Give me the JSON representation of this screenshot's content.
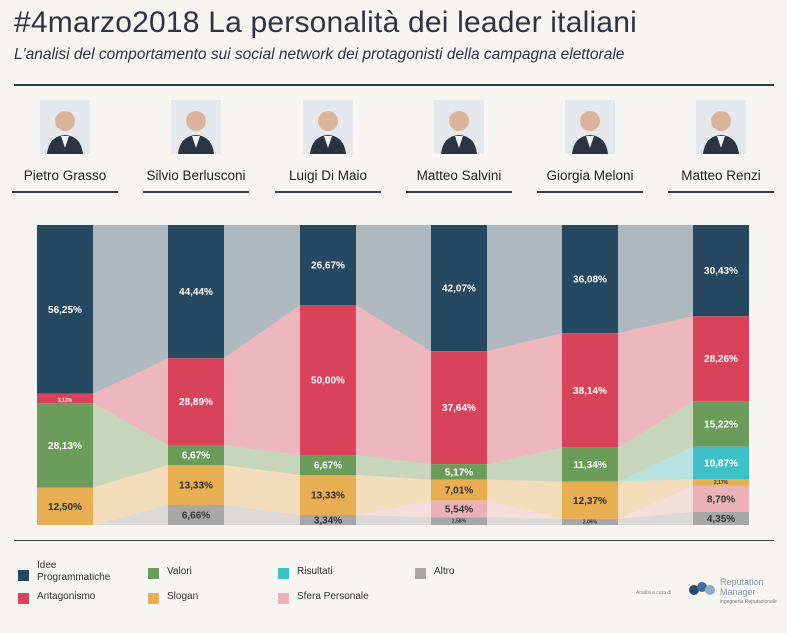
{
  "title": "#4marzo2018 La personalità dei leader italiani",
  "subtitle": "L'analisi del comportamento sui social network dei protagonisti della campagna elettorale",
  "colors": {
    "background": "#f7f5f1",
    "idee": "#264860",
    "antagonismo": "#d8435a",
    "valori": "#6c9c59",
    "slogan": "#e8ae52",
    "risultati": "#3fbfc6",
    "sfera": "#eab1b8",
    "altro": "#a7a7a7"
  },
  "leaders": [
    {
      "name": "Pietro Grasso",
      "icon": "portrait-grasso-icon"
    },
    {
      "name": "Silvio Berlusconi",
      "icon": "portrait-berlusconi-icon"
    },
    {
      "name": "Luigi Di Maio",
      "icon": "portrait-dimaio-icon"
    },
    {
      "name": "Matteo Salvini",
      "icon": "portrait-salvini-icon"
    },
    {
      "name": "Giorgia Meloni",
      "icon": "portrait-meloni-icon"
    },
    {
      "name": "Matteo Renzi",
      "icon": "portrait-renzi-icon"
    }
  ],
  "legend": [
    {
      "key": "idee",
      "label": "Idee Programmatiche"
    },
    {
      "key": "antagonismo",
      "label": "Antagonismo"
    },
    {
      "key": "valori",
      "label": "Valori"
    },
    {
      "key": "slogan",
      "label": "Slogan"
    },
    {
      "key": "risultati",
      "label": "Risultati"
    },
    {
      "key": "sfera",
      "label": "Sfera Personale"
    },
    {
      "key": "altro",
      "label": "Altro"
    }
  ],
  "brand": {
    "prefix": "Analisi a cura di",
    "name": "Reputation Manager",
    "tagline": "ingegneria Reputazionale"
  },
  "chart_data": {
    "type": "bar",
    "stacked": true,
    "percent": true,
    "categories": [
      "Pietro Grasso",
      "Silvio Berlusconi",
      "Luigi Di Maio",
      "Matteo Salvini",
      "Giorgia Meloni",
      "Matteo Renzi"
    ],
    "series": [
      {
        "name": "Idee Programmatiche",
        "key": "idee",
        "values": [
          56.25,
          44.44,
          26.67,
          42.07,
          36.08,
          30.43
        ],
        "labels": [
          "56,25%",
          "44,44%",
          "26,67%",
          "42,07%",
          "36,08%",
          "30,43%"
        ]
      },
      {
        "name": "Antagonismo",
        "key": "antagonismo",
        "values": [
          3.13,
          28.89,
          50.0,
          37.64,
          38.14,
          28.26
        ],
        "labels": [
          "3,13%",
          "28,89%",
          "50,00%",
          "37,64%",
          "38,14%",
          "28,26%"
        ]
      },
      {
        "name": "Valori",
        "key": "valori",
        "values": [
          28.13,
          6.67,
          6.67,
          5.17,
          11.34,
          15.22
        ],
        "labels": [
          "28,13%",
          "6,67%",
          "6,67%",
          "5,17%",
          "11,34%",
          "15,22%"
        ]
      },
      {
        "name": "Risultati",
        "key": "risultati",
        "values": [
          0,
          0,
          0,
          0,
          0,
          10.87
        ],
        "labels": [
          "",
          "",
          "",
          "",
          "",
          "10,87%"
        ]
      },
      {
        "name": "Slogan",
        "key": "slogan",
        "values": [
          12.5,
          13.33,
          13.33,
          7.01,
          12.37,
          2.17
        ],
        "labels": [
          "12,50%",
          "13,33%",
          "13,33%",
          "7,01%",
          "12,37%",
          "2,17%"
        ]
      },
      {
        "name": "Sfera Personale",
        "key": "sfera",
        "values": [
          0,
          0,
          0,
          5.54,
          0,
          8.7
        ],
        "labels": [
          "",
          "",
          "",
          "5,54%",
          "",
          "8,70%"
        ]
      },
      {
        "name": "Altro",
        "key": "altro",
        "values": [
          0,
          6.66,
          3.34,
          2.58,
          2.06,
          4.35
        ],
        "labels": [
          "",
          "6,66%",
          "3,34%",
          "2,58%",
          "2,06%",
          "4,35%"
        ]
      }
    ],
    "ylim": [
      0,
      100
    ],
    "legend_position": "bottom",
    "grid": false
  }
}
